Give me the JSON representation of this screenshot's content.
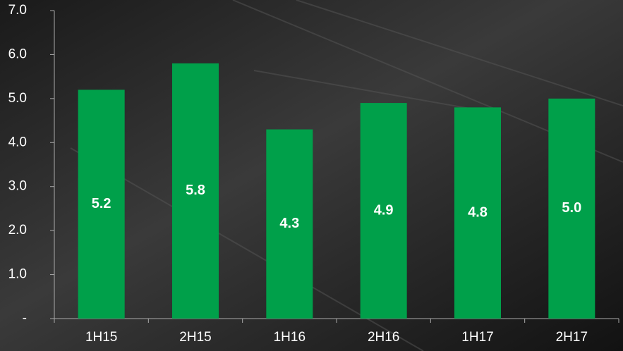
{
  "chart_data": {
    "type": "bar",
    "categories": [
      "1H15",
      "2H15",
      "1H16",
      "2H16",
      "1H17",
      "2H17"
    ],
    "values": [
      5.2,
      5.8,
      4.3,
      4.9,
      4.8,
      5.0
    ],
    "value_labels": [
      "5.2",
      "5.8",
      "4.3",
      "4.9",
      "4.8",
      "5.0"
    ],
    "color": "#00a04a",
    "ylim": [
      0,
      7
    ],
    "yticks": [
      {
        "value": 0,
        "label": "-"
      },
      {
        "value": 1,
        "label": "1.0"
      },
      {
        "value": 2,
        "label": "2.0"
      },
      {
        "value": 3,
        "label": "3.0"
      },
      {
        "value": 4,
        "label": "4.0"
      },
      {
        "value": 5,
        "label": "5.0"
      },
      {
        "value": 6,
        "label": "6.0"
      },
      {
        "value": 7,
        "label": "7.0"
      }
    ],
    "grid": false
  }
}
